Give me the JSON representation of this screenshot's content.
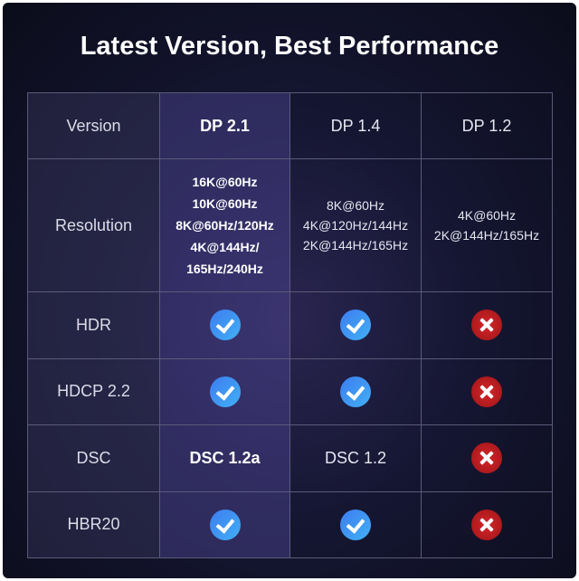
{
  "title": "Latest Version, Best Performance",
  "columns": [
    "Version",
    "DP 2.1",
    "DP 1.4",
    "DP 1.2"
  ],
  "resolution": {
    "label": "Resolution",
    "values": [
      [
        "16K@60Hz",
        "10K@60Hz",
        "8K@60Hz/120Hz",
        "4K@144Hz/",
        "165Hz/240Hz"
      ],
      [
        "8K@60Hz",
        "4K@120Hz/144Hz",
        "2K@144Hz/165Hz"
      ],
      [
        "4K@60Hz",
        "2K@144Hz/165Hz"
      ]
    ]
  },
  "rows": [
    {
      "label": "HDR",
      "values": [
        "check-icon",
        "check-icon",
        "x-icon"
      ]
    },
    {
      "label": "HDCP 2.2",
      "values": [
        "check-icon",
        "check-icon",
        "x-icon"
      ]
    },
    {
      "label": "DSC",
      "values": [
        "DSC 1.2a",
        "DSC 1.2",
        "x-icon"
      ]
    },
    {
      "label": "HBR20",
      "values": [
        "check-icon",
        "check-icon",
        "x-icon"
      ]
    }
  ],
  "colors": {
    "check": "#3d8df2",
    "cross": "#c8202a",
    "background": "#11122a"
  }
}
